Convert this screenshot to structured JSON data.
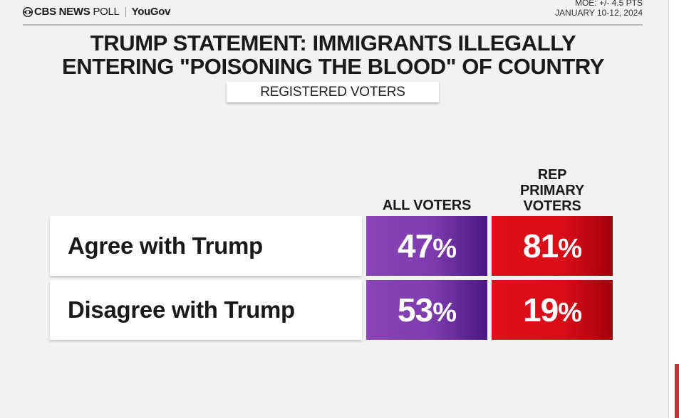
{
  "header": {
    "brand_cbs": "CBS NEWS",
    "brand_poll": "POLL",
    "brand_yougov": "YouGov",
    "moe": "MOE: +/- 4.5  PTS",
    "dates": "JANUARY 10-12, 2024"
  },
  "colors": {
    "all_voters": "#7d3cae",
    "rep_primary": "#d80d18",
    "background": "#f2f2f3"
  },
  "chart_data": {
    "type": "table",
    "title_line1": "TRUMP STATEMENT: IMMIGRANTS ILLEGALLY",
    "title_line2": "ENTERING \"POISONING THE BLOOD\" OF COUNTRY",
    "subtitle": "REGISTERED VOTERS",
    "columns": [
      "ALL VOTERS",
      "REP PRIMARY VOTERS"
    ],
    "column_lines": [
      [
        "ALL VOTERS"
      ],
      [
        "REP",
        "PRIMARY",
        "VOTERS"
      ]
    ],
    "rows": [
      "Agree with Trump",
      "Disagree with Trump"
    ],
    "series": [
      {
        "name": "ALL VOTERS",
        "values": [
          47,
          53
        ]
      },
      {
        "name": "REP PRIMARY VOTERS",
        "values": [
          81,
          19
        ]
      }
    ],
    "unit": "%"
  }
}
